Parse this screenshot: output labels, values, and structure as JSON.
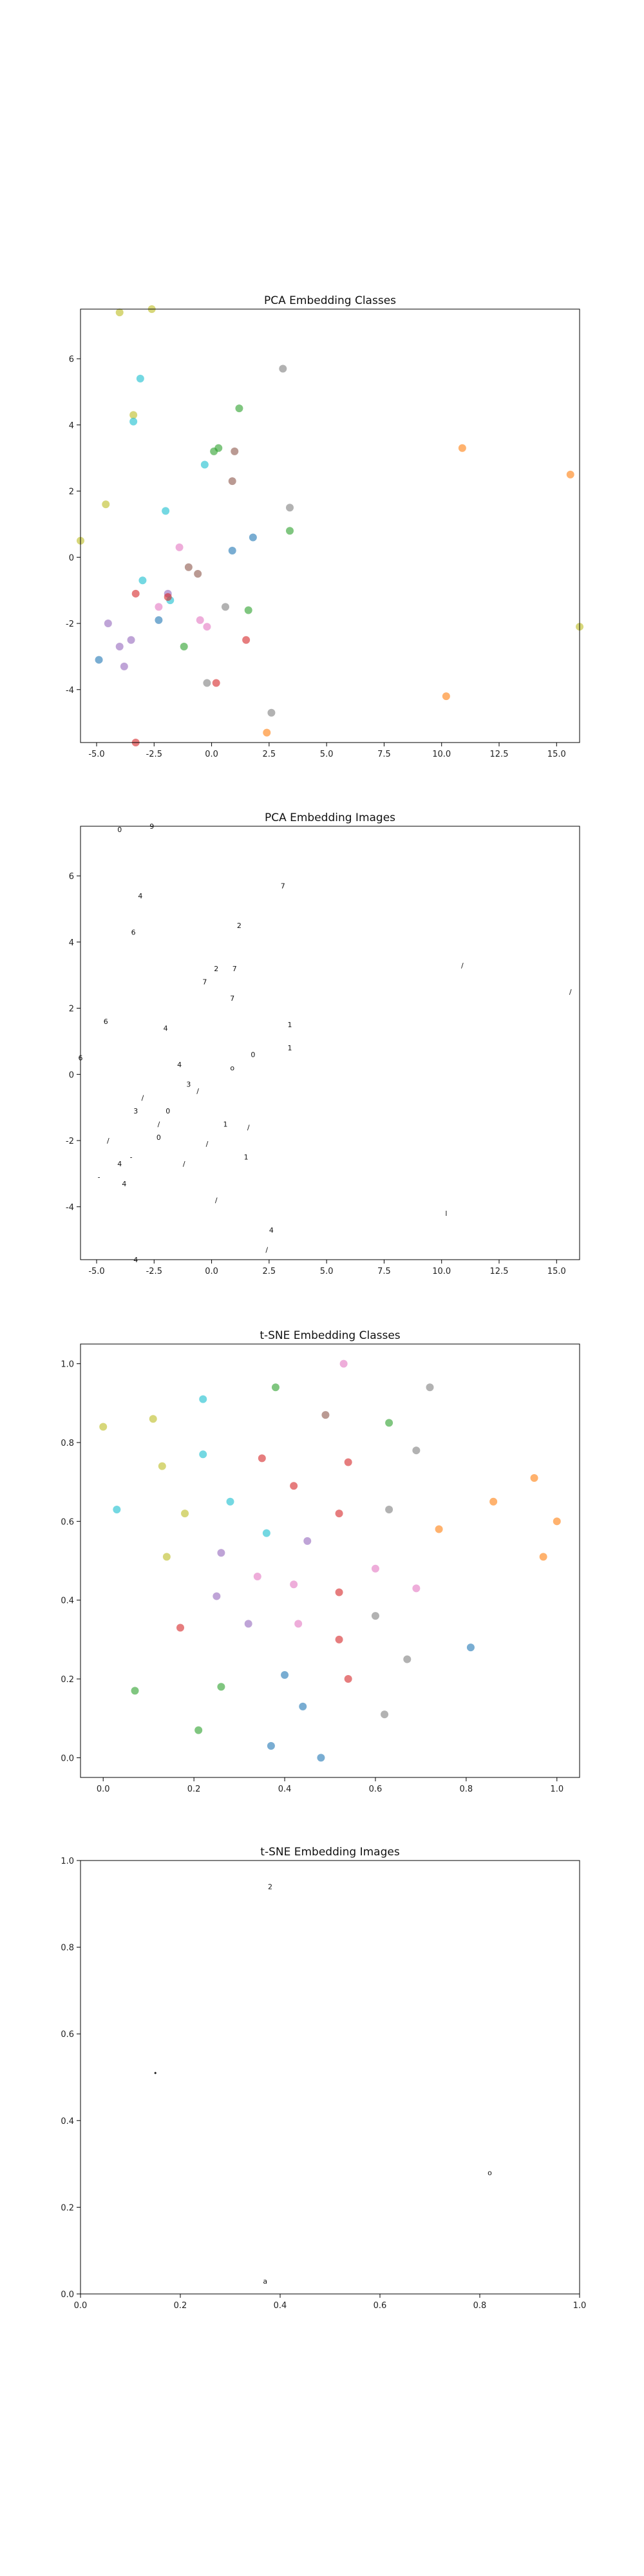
{
  "colors": {
    "blue": "#1f77b4",
    "orange": "#ff7f0e",
    "green": "#2ca02c",
    "red": "#d62728",
    "purple": "#9467bd",
    "brown": "#8c564b",
    "pink": "#e377c2",
    "gray": "#7f7f7f",
    "olive": "#bcbd22",
    "cyan": "#17becf"
  },
  "chart_data": [
    {
      "type": "scatter",
      "title": "PCA Embedding Classes",
      "xlim": [
        -5.7,
        16.0
      ],
      "ylim": [
        -5.6,
        7.5
      ],
      "xticks": [
        "-5.0",
        "-2.5",
        "0.0",
        "2.5",
        "5.0",
        "7.5",
        "10.0",
        "12.5",
        "15.0"
      ],
      "yticks": [
        "-4",
        "-2",
        "0",
        "2",
        "4",
        "6"
      ],
      "points": [
        {
          "x": -4.0,
          "y": 7.4,
          "c": "olive"
        },
        {
          "x": -2.6,
          "y": 7.5,
          "c": "olive"
        },
        {
          "x": -3.1,
          "y": 5.4,
          "c": "cyan"
        },
        {
          "x": 3.1,
          "y": 5.7,
          "c": "gray"
        },
        {
          "x": -3.4,
          "y": 4.3,
          "c": "olive"
        },
        {
          "x": -3.4,
          "y": 4.1,
          "c": "cyan"
        },
        {
          "x": 1.2,
          "y": 4.5,
          "c": "green"
        },
        {
          "x": 0.1,
          "y": 3.2,
          "c": "green"
        },
        {
          "x": 0.3,
          "y": 3.3,
          "c": "green"
        },
        {
          "x": 1.0,
          "y": 3.2,
          "c": "brown"
        },
        {
          "x": -0.3,
          "y": 2.8,
          "c": "cyan"
        },
        {
          "x": 0.9,
          "y": 2.3,
          "c": "brown"
        },
        {
          "x": 10.9,
          "y": 3.3,
          "c": "orange"
        },
        {
          "x": 15.6,
          "y": 2.5,
          "c": "orange"
        },
        {
          "x": -4.6,
          "y": 1.6,
          "c": "olive"
        },
        {
          "x": -2.0,
          "y": 1.4,
          "c": "cyan"
        },
        {
          "x": 3.4,
          "y": 1.5,
          "c": "gray"
        },
        {
          "x": 3.4,
          "y": 0.8,
          "c": "green"
        },
        {
          "x": 1.8,
          "y": 0.6,
          "c": "blue"
        },
        {
          "x": -5.7,
          "y": 0.5,
          "c": "olive"
        },
        {
          "x": -1.4,
          "y": 0.3,
          "c": "pink"
        },
        {
          "x": 0.9,
          "y": 0.2,
          "c": "blue"
        },
        {
          "x": -1.0,
          "y": -0.3,
          "c": "brown"
        },
        {
          "x": -0.6,
          "y": -0.5,
          "c": "brown"
        },
        {
          "x": -3.0,
          "y": -0.7,
          "c": "cyan"
        },
        {
          "x": -3.3,
          "y": -1.1,
          "c": "red"
        },
        {
          "x": -1.9,
          "y": -1.1,
          "c": "purple"
        },
        {
          "x": -1.8,
          "y": -1.3,
          "c": "cyan"
        },
        {
          "x": -1.9,
          "y": -1.2,
          "c": "red"
        },
        {
          "x": 0.6,
          "y": -1.5,
          "c": "gray"
        },
        {
          "x": -2.3,
          "y": -1.5,
          "c": "pink"
        },
        {
          "x": 1.6,
          "y": -1.6,
          "c": "green"
        },
        {
          "x": -2.3,
          "y": -1.9,
          "c": "blue"
        },
        {
          "x": -0.5,
          "y": -1.9,
          "c": "pink"
        },
        {
          "x": -4.5,
          "y": -2.0,
          "c": "purple"
        },
        {
          "x": -0.2,
          "y": -2.1,
          "c": "pink"
        },
        {
          "x": 1.5,
          "y": -2.5,
          "c": "red"
        },
        {
          "x": -3.5,
          "y": -2.5,
          "c": "purple"
        },
        {
          "x": -1.2,
          "y": -2.7,
          "c": "green"
        },
        {
          "x": -4.0,
          "y": -2.7,
          "c": "purple"
        },
        {
          "x": -4.9,
          "y": -3.1,
          "c": "blue"
        },
        {
          "x": -3.8,
          "y": -3.3,
          "c": "purple"
        },
        {
          "x": 16.0,
          "y": -2.1,
          "c": "olive"
        },
        {
          "x": -0.2,
          "y": -3.8,
          "c": "gray"
        },
        {
          "x": 0.2,
          "y": -3.8,
          "c": "red"
        },
        {
          "x": 10.2,
          "y": -4.2,
          "c": "orange"
        },
        {
          "x": 2.6,
          "y": -4.7,
          "c": "gray"
        },
        {
          "x": 2.4,
          "y": -5.3,
          "c": "orange"
        },
        {
          "x": -3.3,
          "y": -5.6,
          "c": "red"
        }
      ]
    },
    {
      "type": "scatter",
      "title": "PCA Embedding Images",
      "xlim": [
        -5.7,
        16.0
      ],
      "ylim": [
        -5.6,
        7.5
      ],
      "xticks": [
        "-5.0",
        "-2.5",
        "0.0",
        "2.5",
        "5.0",
        "7.5",
        "10.0",
        "12.5",
        "15.0"
      ],
      "yticks": [
        "-4",
        "-2",
        "0",
        "2",
        "4",
        "6"
      ],
      "points": [
        {
          "x": -4.0,
          "y": 7.4,
          "g": "0"
        },
        {
          "x": -2.6,
          "y": 7.5,
          "g": "9"
        },
        {
          "x": -3.1,
          "y": 5.4,
          "g": "4"
        },
        {
          "x": 3.1,
          "y": 5.7,
          "g": "7"
        },
        {
          "x": -3.4,
          "y": 4.3,
          "g": "6"
        },
        {
          "x": 1.2,
          "y": 4.5,
          "g": "2"
        },
        {
          "x": 0.2,
          "y": 3.2,
          "g": "2"
        },
        {
          "x": 1.0,
          "y": 3.2,
          "g": "7"
        },
        {
          "x": -0.3,
          "y": 2.8,
          "g": "7"
        },
        {
          "x": 0.9,
          "y": 2.3,
          "g": "7"
        },
        {
          "x": 10.9,
          "y": 3.3,
          "g": "/"
        },
        {
          "x": 15.6,
          "y": 2.5,
          "g": "/"
        },
        {
          "x": -4.6,
          "y": 1.6,
          "g": "6"
        },
        {
          "x": -2.0,
          "y": 1.4,
          "g": "4"
        },
        {
          "x": 3.4,
          "y": 1.5,
          "g": "1"
        },
        {
          "x": 3.4,
          "y": 0.8,
          "g": "1"
        },
        {
          "x": 1.8,
          "y": 0.6,
          "g": "0"
        },
        {
          "x": -5.7,
          "y": 0.5,
          "g": "6"
        },
        {
          "x": -1.4,
          "y": 0.3,
          "g": "4"
        },
        {
          "x": 0.9,
          "y": 0.2,
          "g": "o"
        },
        {
          "x": -1.0,
          "y": -0.3,
          "g": "3"
        },
        {
          "x": -3.0,
          "y": -0.7,
          "g": "/"
        },
        {
          "x": -0.6,
          "y": -0.5,
          "g": "/"
        },
        {
          "x": -3.3,
          "y": -1.1,
          "g": "3"
        },
        {
          "x": -1.9,
          "y": -1.1,
          "g": "0"
        },
        {
          "x": 0.6,
          "y": -1.5,
          "g": "1"
        },
        {
          "x": -2.3,
          "y": -1.5,
          "g": "/"
        },
        {
          "x": 1.6,
          "y": -1.6,
          "g": "/"
        },
        {
          "x": -2.3,
          "y": -1.9,
          "g": "0"
        },
        {
          "x": -0.2,
          "y": -2.1,
          "g": "/"
        },
        {
          "x": -4.5,
          "y": -2.0,
          "g": "/"
        },
        {
          "x": 1.5,
          "y": -2.5,
          "g": "1"
        },
        {
          "x": -3.5,
          "y": -2.5,
          "g": "-"
        },
        {
          "x": -1.2,
          "y": -2.7,
          "g": "/"
        },
        {
          "x": -4.0,
          "y": -2.7,
          "g": "4"
        },
        {
          "x": -4.9,
          "y": -3.1,
          "g": "-"
        },
        {
          "x": -3.8,
          "y": -3.3,
          "g": "4"
        },
        {
          "x": 16.0,
          "y": -2.1,
          "g": "|"
        },
        {
          "x": 0.2,
          "y": -3.8,
          "g": "/"
        },
        {
          "x": 10.2,
          "y": -4.2,
          "g": "l"
        },
        {
          "x": 2.6,
          "y": -4.7,
          "g": "4"
        },
        {
          "x": 2.4,
          "y": -5.3,
          "g": "/"
        },
        {
          "x": -3.3,
          "y": -5.6,
          "g": "4"
        }
      ]
    },
    {
      "type": "scatter",
      "title": "t-SNE Embedding Classes",
      "xlim": [
        -0.05,
        1.05
      ],
      "ylim": [
        -0.05,
        1.05
      ],
      "xticks": [
        "0.0",
        "0.2",
        "0.4",
        "0.6",
        "0.8",
        "1.0"
      ],
      "yticks": [
        "0.0",
        "0.2",
        "0.4",
        "0.6",
        "0.8",
        "1.0"
      ],
      "points": [
        {
          "x": 0.53,
          "y": 1.0,
          "c": "pink"
        },
        {
          "x": 0.72,
          "y": 0.94,
          "c": "gray"
        },
        {
          "x": 0.38,
          "y": 0.94,
          "c": "green"
        },
        {
          "x": 0.22,
          "y": 0.91,
          "c": "cyan"
        },
        {
          "x": 0.49,
          "y": 0.87,
          "c": "brown"
        },
        {
          "x": 0.11,
          "y": 0.86,
          "c": "olive"
        },
        {
          "x": 0.63,
          "y": 0.85,
          "c": "green"
        },
        {
          "x": 0.0,
          "y": 0.84,
          "c": "olive"
        },
        {
          "x": 0.69,
          "y": 0.78,
          "c": "gray"
        },
        {
          "x": 0.22,
          "y": 0.77,
          "c": "cyan"
        },
        {
          "x": 0.35,
          "y": 0.76,
          "c": "red"
        },
        {
          "x": 0.54,
          "y": 0.75,
          "c": "red"
        },
        {
          "x": 0.13,
          "y": 0.74,
          "c": "olive"
        },
        {
          "x": 0.95,
          "y": 0.71,
          "c": "orange"
        },
        {
          "x": 0.42,
          "y": 0.69,
          "c": "red"
        },
        {
          "x": 0.86,
          "y": 0.65,
          "c": "orange"
        },
        {
          "x": 0.28,
          "y": 0.65,
          "c": "cyan"
        },
        {
          "x": 0.03,
          "y": 0.63,
          "c": "cyan"
        },
        {
          "x": 0.63,
          "y": 0.63,
          "c": "gray"
        },
        {
          "x": 0.52,
          "y": 0.62,
          "c": "red"
        },
        {
          "x": 0.18,
          "y": 0.62,
          "c": "olive"
        },
        {
          "x": 1.0,
          "y": 0.6,
          "c": "orange"
        },
        {
          "x": 0.74,
          "y": 0.58,
          "c": "orange"
        },
        {
          "x": 0.36,
          "y": 0.57,
          "c": "cyan"
        },
        {
          "x": 0.45,
          "y": 0.55,
          "c": "purple"
        },
        {
          "x": 0.26,
          "y": 0.52,
          "c": "purple"
        },
        {
          "x": 0.14,
          "y": 0.51,
          "c": "olive"
        },
        {
          "x": 0.97,
          "y": 0.51,
          "c": "orange"
        },
        {
          "x": 0.6,
          "y": 0.48,
          "c": "pink"
        },
        {
          "x": 0.34,
          "y": 0.46,
          "c": "pink"
        },
        {
          "x": 0.42,
          "y": 0.44,
          "c": "pink"
        },
        {
          "x": 0.69,
          "y": 0.43,
          "c": "pink"
        },
        {
          "x": 0.52,
          "y": 0.42,
          "c": "red"
        },
        {
          "x": 0.25,
          "y": 0.41,
          "c": "purple"
        },
        {
          "x": 0.6,
          "y": 0.36,
          "c": "gray"
        },
        {
          "x": 0.32,
          "y": 0.34,
          "c": "purple"
        },
        {
          "x": 0.43,
          "y": 0.34,
          "c": "pink"
        },
        {
          "x": 0.17,
          "y": 0.33,
          "c": "red"
        },
        {
          "x": 0.52,
          "y": 0.3,
          "c": "red"
        },
        {
          "x": 0.81,
          "y": 0.28,
          "c": "blue"
        },
        {
          "x": 0.67,
          "y": 0.25,
          "c": "gray"
        },
        {
          "x": 0.4,
          "y": 0.21,
          "c": "blue"
        },
        {
          "x": 0.54,
          "y": 0.2,
          "c": "red"
        },
        {
          "x": 0.26,
          "y": 0.18,
          "c": "green"
        },
        {
          "x": 0.07,
          "y": 0.17,
          "c": "green"
        },
        {
          "x": 0.44,
          "y": 0.13,
          "c": "blue"
        },
        {
          "x": 0.62,
          "y": 0.11,
          "c": "gray"
        },
        {
          "x": 0.21,
          "y": 0.07,
          "c": "green"
        },
        {
          "x": 0.37,
          "y": 0.03,
          "c": "blue"
        },
        {
          "x": 0.48,
          "y": 0.0,
          "c": "blue"
        }
      ]
    },
    {
      "type": "scatter",
      "title": "t-SNE Embedding Images",
      "xlim": [
        0.0,
        1.0
      ],
      "ylim": [
        0.0,
        1.0
      ],
      "xticks": [
        "0.0",
        "0.2",
        "0.4",
        "0.6",
        "0.8",
        "1.0"
      ],
      "yticks": [
        "0.0",
        "0.2",
        "0.4",
        "0.6",
        "0.8",
        "1.0"
      ],
      "points": [
        {
          "x": 0.38,
          "y": 0.94,
          "g": "2"
        },
        {
          "x": 0.15,
          "y": 0.51,
          "g": "•"
        },
        {
          "x": 0.82,
          "y": 0.28,
          "g": "o"
        },
        {
          "x": 0.37,
          "y": 0.03,
          "g": "a"
        }
      ]
    }
  ]
}
